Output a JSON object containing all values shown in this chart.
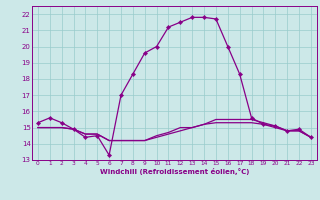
{
  "xlabel": "Windchill (Refroidissement éolien,°C)",
  "background_color": "#cce8e8",
  "line_color": "#880088",
  "grid_color": "#99cccc",
  "xlim": [
    -0.5,
    23.5
  ],
  "ylim": [
    13,
    22.5
  ],
  "xticks": [
    0,
    1,
    2,
    3,
    4,
    5,
    6,
    7,
    8,
    9,
    10,
    11,
    12,
    13,
    14,
    15,
    16,
    17,
    18,
    19,
    20,
    21,
    22,
    23
  ],
  "yticks": [
    13,
    14,
    15,
    16,
    17,
    18,
    19,
    20,
    21,
    22
  ],
  "curve1_x": [
    0,
    1,
    2,
    3,
    4,
    5,
    6,
    7,
    8,
    9,
    10,
    11,
    12,
    13,
    14,
    15,
    16,
    17,
    18,
    19,
    20,
    21,
    22,
    23
  ],
  "curve1_y": [
    15.3,
    15.6,
    15.3,
    14.9,
    14.4,
    14.5,
    13.3,
    17.0,
    18.3,
    19.6,
    20.0,
    21.2,
    21.5,
    21.8,
    21.8,
    21.7,
    20.0,
    18.3,
    15.6,
    15.2,
    15.1,
    14.8,
    14.9,
    14.4
  ],
  "curve2_x": [
    0,
    1,
    2,
    3,
    4,
    5,
    6,
    7,
    8,
    9,
    10,
    11,
    12,
    13,
    14,
    15,
    16,
    17,
    18,
    19,
    20,
    21,
    22,
    23
  ],
  "curve2_y": [
    15.0,
    15.0,
    15.0,
    14.9,
    14.6,
    14.6,
    14.2,
    14.2,
    14.2,
    14.2,
    14.5,
    14.7,
    15.0,
    15.0,
    15.2,
    15.3,
    15.3,
    15.3,
    15.3,
    15.2,
    15.0,
    14.8,
    14.8,
    14.4
  ],
  "curve3_x": [
    0,
    1,
    2,
    3,
    4,
    5,
    6,
    7,
    8,
    9,
    10,
    11,
    12,
    13,
    14,
    15,
    16,
    17,
    18,
    19,
    20,
    21,
    22,
    23
  ],
  "curve3_y": [
    15.0,
    15.0,
    15.0,
    14.9,
    14.6,
    14.6,
    14.2,
    14.2,
    14.2,
    14.2,
    14.4,
    14.6,
    14.8,
    15.0,
    15.2,
    15.5,
    15.5,
    15.5,
    15.5,
    15.3,
    15.1,
    14.8,
    14.8,
    14.4
  ]
}
